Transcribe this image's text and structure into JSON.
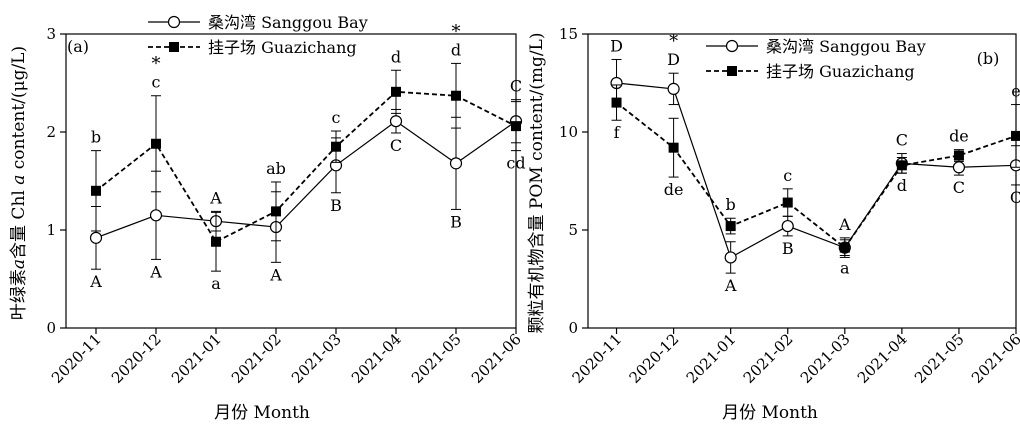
{
  "chart_data": [
    {
      "type": "line",
      "panel_label": "(a)",
      "xlabel": "月份 Month",
      "ylabel": "叶绿素a含量 Chl a content/(μg/L)",
      "ylabel_parts": {
        "pre": "叶绿素",
        "italic1": "a",
        "mid": "含量 Chl ",
        "italic2": "a",
        "post": " content/(μg/L)"
      },
      "ylim": [
        0,
        3
      ],
      "yticks": [
        "0",
        "1",
        "2",
        "3"
      ],
      "categories": [
        "2020-11",
        "2020-12",
        "2021-01",
        "2021-02",
        "2021-03",
        "2021-04",
        "2021-05",
        "2021-06"
      ],
      "legend_position": "top-center",
      "series": [
        {
          "name": "桑沟湾 Sanggou Bay",
          "marker": "open-circle",
          "line": "solid",
          "values": [
            0.92,
            1.15,
            1.09,
            1.03,
            1.66,
            2.11,
            1.68,
            2.11
          ],
          "errors": [
            0.32,
            0.45,
            0.1,
            0.36,
            0.28,
            0.12,
            0.47,
            0.22
          ],
          "letters": [
            "A",
            "A",
            "A",
            "A",
            "B",
            "C",
            "B",
            "C"
          ]
        },
        {
          "name": "挂子场 Guazichang",
          "marker": "filled-square",
          "line": "dashed",
          "values": [
            1.4,
            1.88,
            0.88,
            1.19,
            1.85,
            2.41,
            2.37,
            2.06
          ],
          "errors": [
            0.41,
            0.49,
            0.3,
            0.3,
            0.16,
            0.22,
            0.33,
            0.25
          ],
          "letters": [
            "b",
            "c",
            "a",
            "ab",
            "c",
            "d",
            "d",
            "cd"
          ]
        }
      ],
      "significance_marks": {
        "symbol": "*",
        "categories": [
          "2020-12",
          "2021-05"
        ]
      }
    },
    {
      "type": "line",
      "panel_label": "(b)",
      "xlabel": "月份 Month",
      "ylabel": "颗粒有机物含量 POM content/(mg/L)",
      "ylim": [
        0,
        15
      ],
      "yticks": [
        "0",
        "5",
        "10",
        "15"
      ],
      "categories": [
        "2020-11",
        "2020-12",
        "2021-01",
        "2021-02",
        "2021-03",
        "2021-04",
        "2021-05",
        "2021-06"
      ],
      "legend_position": "top-right",
      "series": [
        {
          "name": "桑沟湾 Sanggou Bay",
          "marker": "open-circle",
          "line": "solid",
          "values": [
            12.5,
            12.2,
            3.6,
            5.2,
            4.1,
            8.4,
            8.2,
            8.3
          ],
          "errors": [
            1.2,
            0.8,
            0.8,
            0.5,
            0.5,
            0.5,
            0.4,
            1.0
          ],
          "letters": [
            "D",
            "D",
            "A",
            "B",
            "A",
            "C",
            "C",
            "C"
          ]
        },
        {
          "name": "挂子场 Guazichang",
          "marker": "filled-square",
          "line": "dashed",
          "values": [
            11.5,
            9.2,
            5.2,
            6.4,
            4.1,
            8.3,
            8.8,
            9.8
          ],
          "errors": [
            0.9,
            1.5,
            0.4,
            0.7,
            0.4,
            0.4,
            0.3,
            1.6
          ],
          "letters": [
            "f",
            "de",
            "b",
            "c",
            "a",
            "d",
            "de",
            "e"
          ]
        }
      ],
      "significance_marks": {
        "symbol": "*",
        "categories": [
          "2020-12"
        ]
      }
    }
  ]
}
